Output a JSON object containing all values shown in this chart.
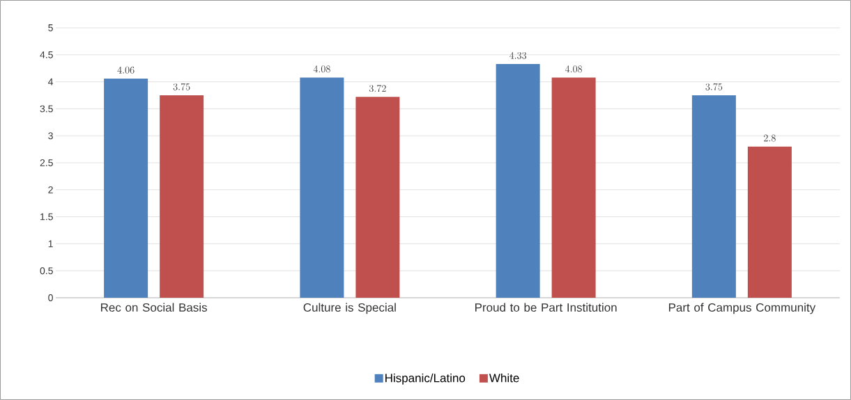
{
  "chart_data": {
    "type": "bar",
    "categories": [
      "Rec on Social Basis",
      "Culture is Special",
      "Proud to be Part Institution",
      "Part of Campus Community"
    ],
    "series": [
      {
        "name": "Hispanic/Latino",
        "color": "#4f81bd",
        "values": [
          4.06,
          4.08,
          4.33,
          3.75
        ]
      },
      {
        "name": "White",
        "color": "#c0504d",
        "values": [
          3.75,
          3.72,
          4.08,
          2.8
        ]
      }
    ],
    "ylim": [
      0,
      5
    ],
    "yticks": [
      0,
      0.5,
      1,
      1.5,
      2,
      2.5,
      3,
      3.5,
      4,
      4.5,
      5
    ],
    "grid": "y",
    "legend": "bottom",
    "data_labels": true
  }
}
